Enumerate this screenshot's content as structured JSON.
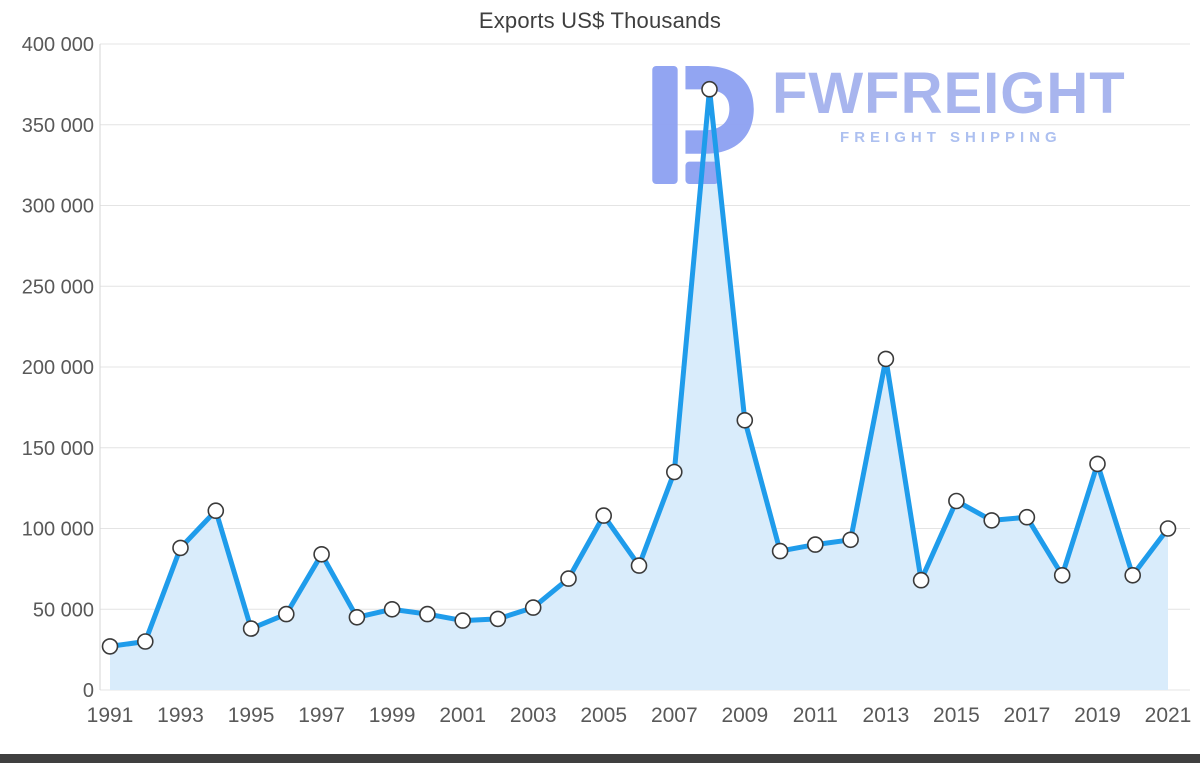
{
  "page": {
    "title": "Exports US$ Thousands"
  },
  "watermark": {
    "brand": "FWFREIGHT",
    "tagline": "FREIGHT SHIPPING",
    "logo_color": "#8da1f2",
    "brand_color": "#a4b2ee",
    "tagline_color": "#a9bdf0"
  },
  "chart_data": {
    "type": "line",
    "title": "Exports US$ Thousands",
    "x": [
      1991,
      1992,
      1993,
      1994,
      1995,
      1996,
      1997,
      1998,
      1999,
      2000,
      2001,
      2002,
      2003,
      2004,
      2005,
      2006,
      2007,
      2008,
      2009,
      2010,
      2011,
      2012,
      2013,
      2014,
      2015,
      2016,
      2017,
      2018,
      2019,
      2020,
      2021
    ],
    "values": [
      27000,
      30000,
      88000,
      111000,
      38000,
      47000,
      84000,
      45000,
      50000,
      47000,
      43000,
      44000,
      51000,
      69000,
      108000,
      77000,
      135000,
      372000,
      167000,
      86000,
      90000,
      93000,
      205000,
      68000,
      117000,
      105000,
      107000,
      71000,
      140000,
      71000,
      100000
    ],
    "ylim": [
      0,
      400000
    ],
    "y_ticks": [
      0,
      50000,
      100000,
      150000,
      200000,
      250000,
      300000,
      350000,
      400000
    ],
    "y_tick_labels": [
      "0",
      "50 000",
      "100 000",
      "150 000",
      "200 000",
      "250 000",
      "300 000",
      "350 000",
      "400 000"
    ],
    "x_tick_labels": [
      "1991",
      "1993",
      "1995",
      "1997",
      "1999",
      "2001",
      "2003",
      "2005",
      "2007",
      "2009",
      "2011",
      "2013",
      "2015",
      "2017",
      "2019",
      "2021"
    ],
    "grid": true,
    "legend": false,
    "colors": {
      "line": "#1f9ceb",
      "area": "#d9ecfb",
      "marker_fill": "#ffffff",
      "marker_stroke": "#3a3a3a",
      "grid": "#e4e4e4",
      "axis_line": "#d6d6d6",
      "axis_text": "#595959"
    }
  }
}
